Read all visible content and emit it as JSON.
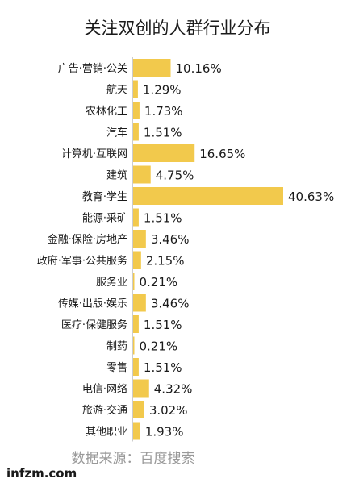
{
  "chart_data": {
    "type": "bar",
    "orientation": "horizontal",
    "title": "关注双创的人群行业分布",
    "source": "数据来源：百度搜索",
    "categories": [
      "广告·营销·公关",
      "航天",
      "农林化工",
      "汽车",
      "计算机·互联网",
      "建筑",
      "教育·学生",
      "能源·采矿",
      "金融·保险·房地产",
      "政府·军事·公共服务",
      "服务业",
      "传媒·出版·娱乐",
      "医疗·保健服务",
      "制药",
      "零售",
      "电信·网络",
      "旅游·交通",
      "其他职业"
    ],
    "values": [
      10.16,
      1.29,
      1.73,
      1.51,
      16.65,
      4.75,
      40.63,
      1.51,
      3.46,
      2.15,
      0.21,
      3.46,
      1.51,
      0.21,
      1.51,
      4.32,
      3.02,
      1.93
    ],
    "value_labels": [
      "10.16%",
      "1.29%",
      "1.73%",
      "1.51%",
      "16.65%",
      "4.75%",
      "40.63%",
      "1.51%",
      "3.46%",
      "2.15%",
      "0.21%",
      "3.46%",
      "1.51%",
      "0.21%",
      "1.51%",
      "4.32%",
      "3.02%",
      "1.93%"
    ],
    "unit": "%",
    "bar_color": "#F2C94C",
    "axis_color": "#999999",
    "xlim": [
      0,
      40.63
    ]
  },
  "brand": "infzm.com"
}
